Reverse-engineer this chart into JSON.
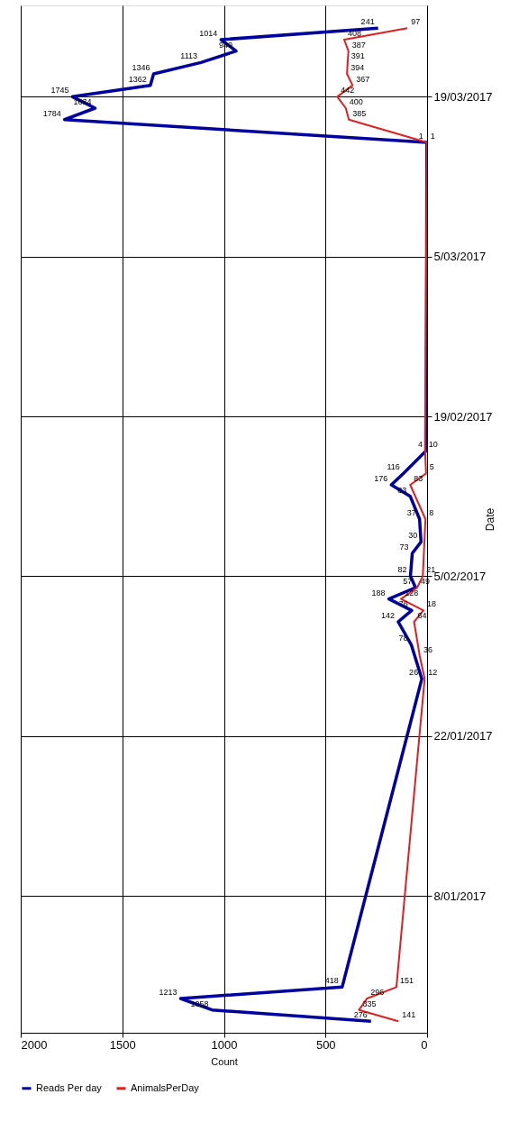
{
  "chart_data": {
    "type": "line",
    "orientation": "horizontal",
    "ylabel": "Date",
    "xlabel": "Count",
    "ylim": [
      "2016-12-27",
      "2017-03-27"
    ],
    "yticks": [
      {
        "value": "2017-01-08",
        "label": "8/01/2017"
      },
      {
        "value": "2017-01-22",
        "label": "22/01/2017"
      },
      {
        "value": "2017-02-05",
        "label": "5/02/2017"
      },
      {
        "value": "2017-02-19",
        "label": "19/02/2017"
      },
      {
        "value": "2017-03-05",
        "label": "5/03/2017"
      },
      {
        "value": "2017-03-19",
        "label": "19/03/2017"
      }
    ],
    "xlim": [
      2000,
      0
    ],
    "xticks": [
      2000,
      1500,
      1000,
      500,
      0
    ],
    "grid": true,
    "legend": "bottom",
    "data_labels": true,
    "line_style": "solid",
    "marker": "none",
    "series": [
      {
        "name": "Reads Per day",
        "color": "#0000a0",
        "x": [
          "2016-12-28",
          "2016-12-29",
          "2016-12-30",
          "2016-12-31",
          "2017-01-27",
          "2017-01-30",
          "2017-02-01",
          "2017-02-02",
          "2017-02-03",
          "2017-02-04",
          "2017-02-05",
          "2017-02-07",
          "2017-02-08",
          "2017-02-10",
          "2017-02-12",
          "2017-02-13",
          "2017-02-14",
          "2017-02-16",
          "2017-03-15",
          "2017-03-17",
          "2017-03-18",
          "2017-03-19",
          "2017-03-20",
          "2017-03-21",
          "2017-03-22",
          "2017-03-23",
          "2017-03-24",
          "2017-03-25"
        ],
        "values": [
          276,
          1058,
          1213,
          418,
          26,
          78,
          142,
          76,
          188,
          57,
          82,
          73,
          30,
          37,
          83,
          176,
          116,
          4,
          1,
          1784,
          1634,
          1745,
          1362,
          1346,
          1113,
          940,
          1014,
          241
        ]
      },
      {
        "name": "AnimalsPerDay",
        "color": "#e02020",
        "x": [
          "2016-12-28",
          "2016-12-29",
          "2016-12-30",
          "2016-12-31",
          "2017-01-27",
          "2017-01-29",
          "2017-02-01",
          "2017-02-02",
          "2017-02-03",
          "2017-02-04",
          "2017-02-05",
          "2017-02-10",
          "2017-02-13",
          "2017-02-14",
          "2017-02-16",
          "2017-03-15",
          "2017-03-17",
          "2017-03-18",
          "2017-03-19",
          "2017-03-20",
          "2017-03-21",
          "2017-03-22",
          "2017-03-23",
          "2017-03-24",
          "2017-03-25"
        ],
        "values": [
          141,
          335,
          296,
          151,
          12,
          36,
          64,
          18,
          128,
          49,
          21,
          8,
          83,
          5,
          10,
          1,
          385,
          400,
          442,
          367,
          394,
          391,
          387,
          408,
          97
        ]
      }
    ]
  }
}
